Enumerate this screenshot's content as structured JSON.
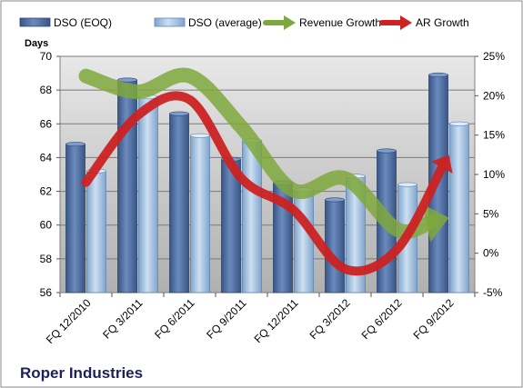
{
  "chart_data": {
    "type": "bar",
    "title": "",
    "company": "Roper Industries",
    "ylabel": "Days",
    "ylim": [
      56,
      70
    ],
    "y_ticks": [
      "56",
      "58",
      "60",
      "62",
      "64",
      "66",
      "68",
      "70"
    ],
    "y2lim": [
      -5,
      25
    ],
    "y2_ticks": [
      "-5%",
      "0%",
      "5%",
      "10%",
      "15%",
      "20%",
      "25%"
    ],
    "categories": [
      "FQ 12/2010",
      "FQ 3/2011",
      "FQ 6/2011",
      "FQ 9/2011",
      "FQ 12/2011",
      "FQ 3/2012",
      "FQ 6/2012",
      "FQ 9/2012"
    ],
    "series": [
      {
        "name": "DSO (EOQ)",
        "kind": "bar",
        "color": "#4a6a9c",
        "values": [
          64.8,
          68.6,
          66.6,
          63.9,
          62.5,
          61.5,
          64.4,
          68.9
        ]
      },
      {
        "name": "DSO (average)",
        "kind": "bar",
        "color": "#a8c4e0",
        "values": [
          63.2,
          67.6,
          65.3,
          65.0,
          62.1,
          62.9,
          62.4,
          66.0
        ]
      },
      {
        "name": "Revenue Growth",
        "kind": "line",
        "axis": "secondary",
        "color": "#7fa83c",
        "values": [
          22.5,
          20.5,
          22.5,
          16.0,
          8.0,
          9.5,
          3.0,
          4.5
        ]
      },
      {
        "name": "AR Growth",
        "kind": "line",
        "axis": "secondary",
        "color": "#cc2222",
        "values": [
          9.0,
          17.5,
          19.5,
          9.5,
          5.5,
          -2.0,
          0.5,
          12.5
        ]
      }
    ],
    "legend_position": "top",
    "grid": true,
    "plot_background": "#c0c0c0"
  }
}
